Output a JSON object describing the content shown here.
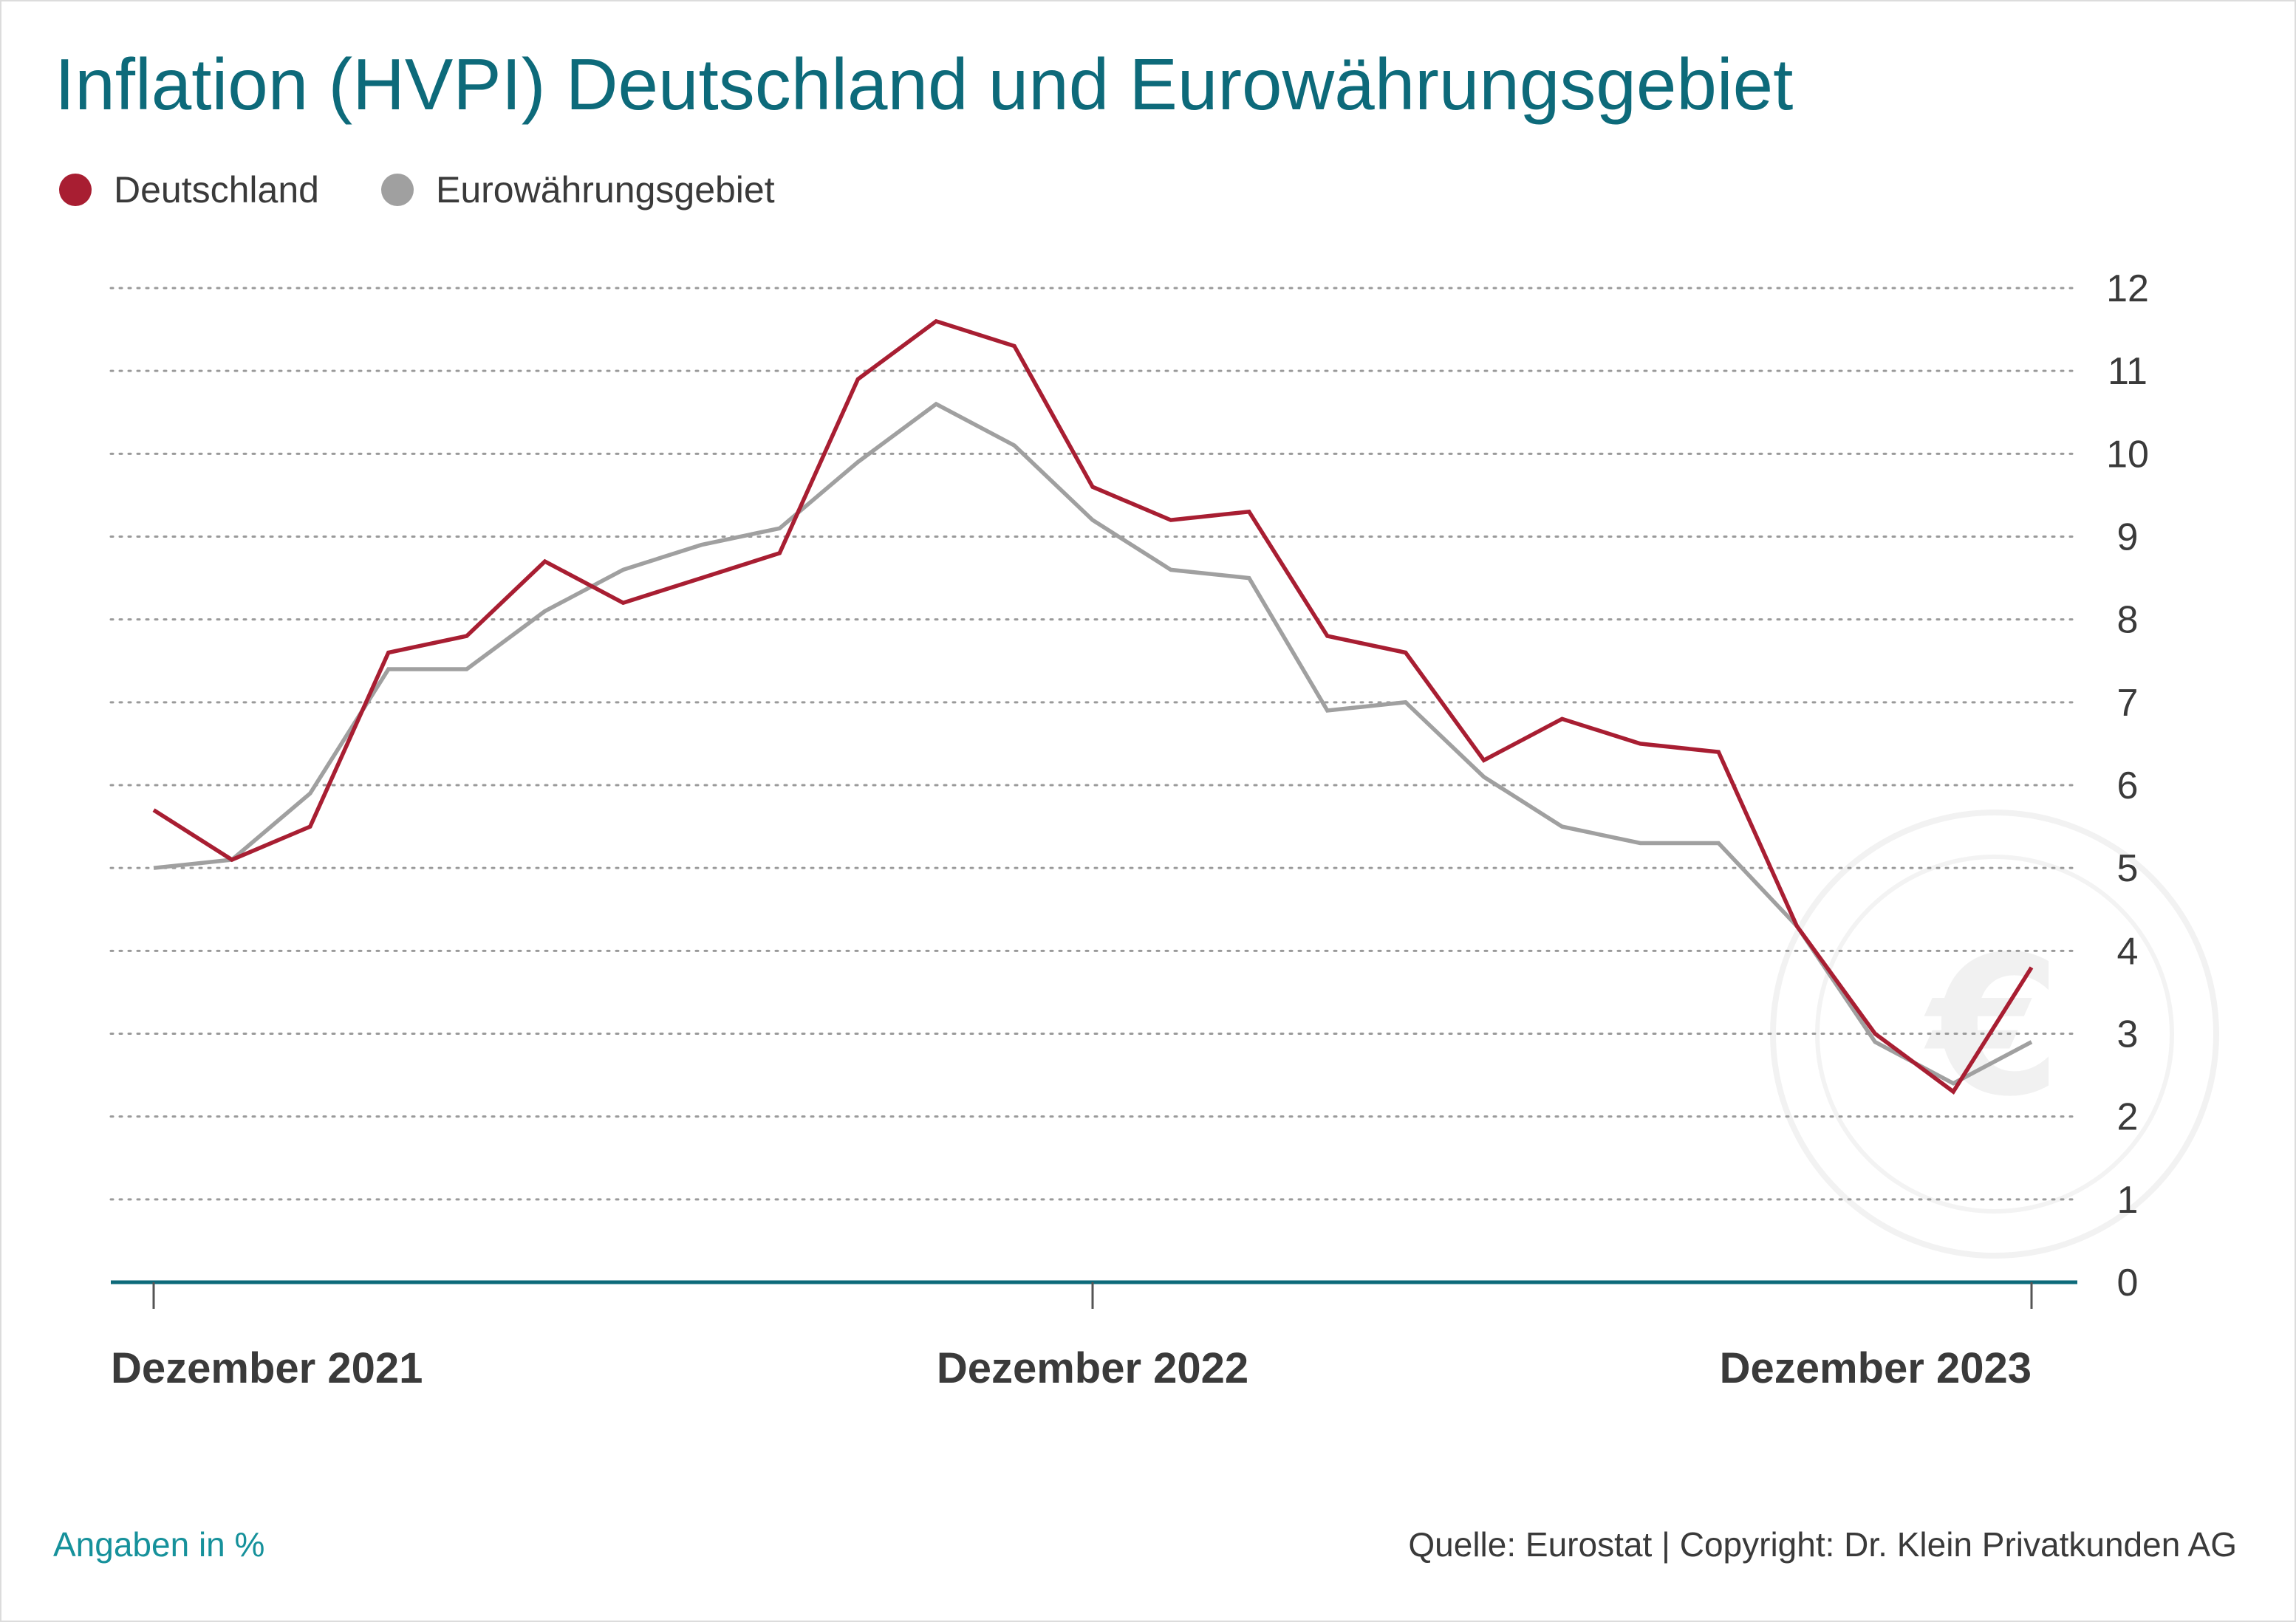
{
  "title": "Inflation (HVPI) Deutschland und Eurowährungsgebiet",
  "footer": {
    "unit_note": "Angaben in %",
    "source": "Quelle: Eurostat | Copyright: Dr. Klein Privatkunden AG"
  },
  "colors": {
    "title": "#0d6a7a",
    "deutschland": "#a81e32",
    "euro": "#a0a0a0",
    "axis": "#0d6a7a",
    "grid": "#9a9a9a",
    "unit_note": "#16919b"
  },
  "chart_data": {
    "type": "line",
    "title": "Inflation (HVPI) Deutschland und Eurowährungsgebiet",
    "xlabel": "",
    "ylabel": "",
    "ylim": [
      0,
      12
    ],
    "yticks": [
      0,
      1,
      2,
      3,
      4,
      5,
      6,
      7,
      8,
      9,
      10,
      11,
      12
    ],
    "y_axis_position": "right",
    "grid": "horizontal dotted",
    "legend_position": "top-left",
    "x": [
      "2021-12",
      "2022-01",
      "2022-02",
      "2022-03",
      "2022-04",
      "2022-05",
      "2022-06",
      "2022-07",
      "2022-08",
      "2022-09",
      "2022-10",
      "2022-11",
      "2022-12",
      "2023-01",
      "2023-02",
      "2023-03",
      "2023-04",
      "2023-05",
      "2023-06",
      "2023-07",
      "2023-08",
      "2023-09",
      "2023-10",
      "2023-11",
      "2023-12"
    ],
    "x_tick_labels": [
      {
        "x": "2021-12",
        "label": "Dezember 2021"
      },
      {
        "x": "2022-12",
        "label": "Dezember 2022"
      },
      {
        "x": "2023-12",
        "label": "Dezember 2023"
      }
    ],
    "series": [
      {
        "name": "Deutschland",
        "color": "#a81e32",
        "values": [
          5.7,
          5.1,
          5.5,
          7.6,
          7.8,
          8.7,
          8.2,
          8.5,
          8.8,
          10.9,
          11.6,
          11.3,
          9.6,
          9.2,
          9.3,
          7.8,
          7.6,
          6.3,
          6.8,
          6.5,
          6.4,
          4.3,
          3.0,
          2.3,
          3.8
        ]
      },
      {
        "name": "Eurowährungsgebiet",
        "color": "#a0a0a0",
        "values": [
          5.0,
          5.1,
          5.9,
          7.4,
          7.4,
          8.1,
          8.6,
          8.9,
          9.1,
          9.9,
          10.6,
          10.1,
          9.2,
          8.6,
          8.5,
          6.9,
          7.0,
          6.1,
          5.5,
          5.3,
          5.3,
          4.3,
          2.9,
          2.4,
          2.9
        ]
      }
    ]
  }
}
